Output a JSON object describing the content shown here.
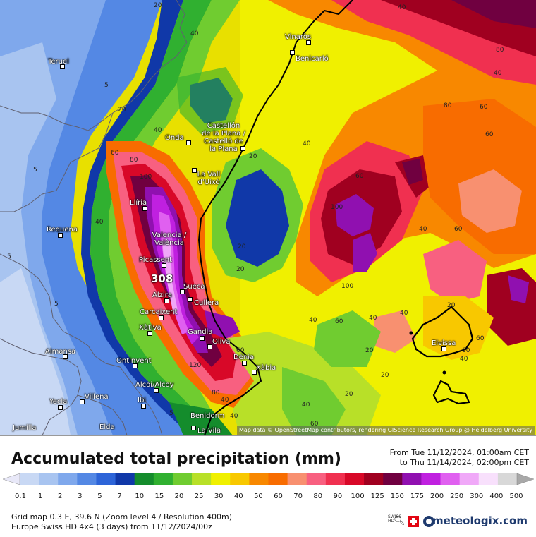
{
  "map": {
    "attribution": "Map data © OpenStreetMap contributors, rendering GIScience Research Group @ Heidelberg University",
    "max_value": "308",
    "cities": [
      {
        "name": "Teruel"
      },
      {
        "name": "Vinaròs"
      },
      {
        "name": "Benicarló"
      },
      {
        "name": "Castellón\nde la Plana /\nCastelló de\nla Plana"
      },
      {
        "name": "Onda"
      },
      {
        "name": "La Vall\nd'Uixó"
      },
      {
        "name": "Llíria"
      },
      {
        "name": "Requena"
      },
      {
        "name": "Valencia /\nValència"
      },
      {
        "name": "Picassent"
      },
      {
        "name": "Sueca"
      },
      {
        "name": "Alzira"
      },
      {
        "name": "Cullera"
      },
      {
        "name": "Carcaixent"
      },
      {
        "name": "Xàtiva"
      },
      {
        "name": "Gandia"
      },
      {
        "name": "Oliva"
      },
      {
        "name": "Almansa"
      },
      {
        "name": "Ontinyent"
      },
      {
        "name": "Dénia"
      },
      {
        "name": "Xàbia"
      },
      {
        "name": "Alcoi/Alcoy"
      },
      {
        "name": "Yecla"
      },
      {
        "name": "Villena"
      },
      {
        "name": "Ibi"
      },
      {
        "name": "Benidorm"
      },
      {
        "name": "Jumilla"
      },
      {
        "name": "Elda"
      },
      {
        "name": "La Vila"
      },
      {
        "name": "Eivissa"
      }
    ],
    "contour_labels": [
      "20",
      "40",
      "5",
      "40",
      "40",
      "60",
      "80",
      "5",
      "20",
      "40",
      "60",
      "80",
      "100",
      "120",
      "40",
      "20",
      "40",
      "20",
      "5",
      "60",
      "100",
      "60",
      "80",
      "60",
      "40",
      "100",
      "40",
      "20",
      "5",
      "60",
      "60",
      "40",
      "80",
      "60",
      "40",
      "20",
      "60",
      "20",
      "40",
      "40",
      "20",
      "40",
      "20",
      "60",
      "40",
      "5"
    ]
  },
  "legend": {
    "title": "Accumulated total precipitation (mm)",
    "from": "From Tue 11/12/2024, 01:00am CET",
    "to": "to Thu 11/14/2024, 02:00pm CET",
    "ticks": [
      "0.1",
      "1",
      "2",
      "3",
      "5",
      "7",
      "10",
      "15",
      "20",
      "25",
      "30",
      "40",
      "50",
      "60",
      "70",
      "80",
      "90",
      "100",
      "125",
      "150",
      "175",
      "200",
      "250",
      "300",
      "400",
      "500"
    ],
    "colors": [
      "#e8e8f8",
      "#c8d8f4",
      "#a8c4f0",
      "#7fa8ec",
      "#5488e4",
      "#2d64d8",
      "#1038a8",
      "#148c2c",
      "#30b030",
      "#70cc30",
      "#b8e028",
      "#f0f000",
      "#f8c800",
      "#f88800",
      "#f86c00",
      "#f89070",
      "#f86080",
      "#f03050",
      "#d80828",
      "#a00020",
      "#700040",
      "#9010b0",
      "#c020e0",
      "#e060f0",
      "#f0a8f8",
      "#f8e0fc",
      "#d8d8d8",
      "#a8a8a8"
    ],
    "grid_line": "Grid map 0.3 E, 39.6 N (Zoom level 4 / Resolution 400m)",
    "model_line": "Europe Swiss HD 4x4 (3 days) from  11/12/2024/00z",
    "swiss_hd": "SWISS HD",
    "brand": "meteologix.com"
  }
}
